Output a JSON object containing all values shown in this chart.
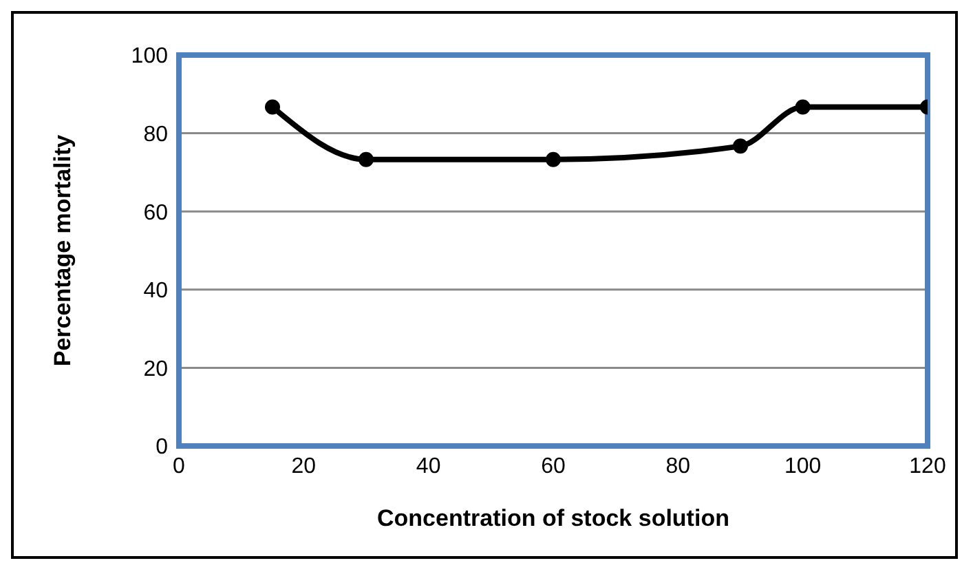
{
  "chart_data": {
    "type": "line",
    "xlabel": "Concentration of stock solution",
    "ylabel": "Percentage mortality",
    "x": [
      15,
      30,
      60,
      90,
      100,
      120
    ],
    "series": [
      {
        "color": "#000000",
        "values": [
          86.7,
          73.3,
          73.3,
          76.7,
          86.7,
          86.7
        ]
      }
    ],
    "xlim": [
      0,
      120
    ],
    "xticks": [
      0,
      20,
      40,
      60,
      80,
      100,
      120
    ],
    "ylim": [
      0,
      100
    ],
    "yticks": [
      0,
      20,
      40,
      60,
      80,
      100
    ],
    "grid": "y",
    "marker": "circle",
    "line_style": "solid"
  }
}
